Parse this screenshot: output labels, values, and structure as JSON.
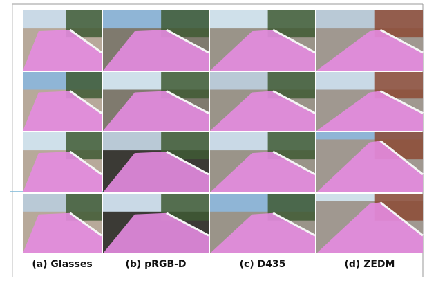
{
  "captions": [
    "(a) Glasses",
    "(b) pRGB-D",
    "(c) D435",
    "(d) ZEDM"
  ]
}
